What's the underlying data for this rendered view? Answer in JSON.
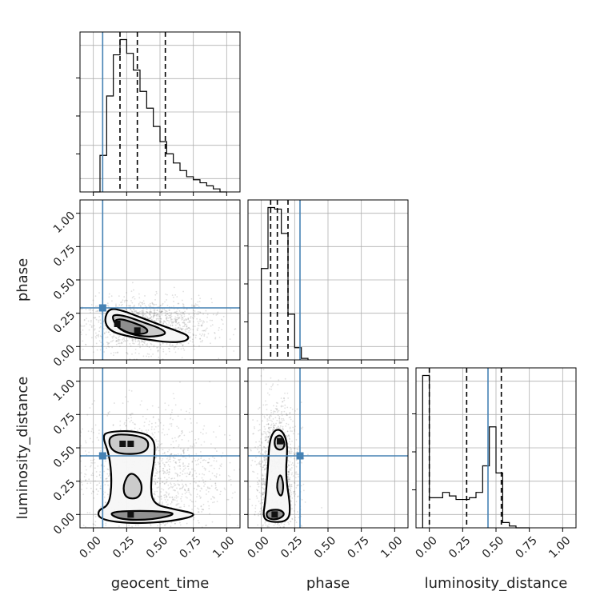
{
  "chart_data": {
    "type": "corner",
    "parameters": [
      "geocent_time",
      "phase",
      "luminosity_distance"
    ],
    "axis_range": [
      -0.1,
      1.1
    ],
    "ticks": [
      0.0,
      0.25,
      0.5,
      0.75,
      1.0
    ],
    "tick_labels": [
      "0.00",
      "0.25",
      "0.50",
      "0.75",
      "1.00"
    ],
    "truths": [
      0.07,
      0.29,
      0.44
    ],
    "colors": {
      "truth": "#4682b4",
      "hist": "#000000",
      "grid": "#b0b0b0",
      "contour": "#000000",
      "scatter": "#555555"
    },
    "grid": true,
    "histograms": [
      {
        "param": "geocent_time",
        "bin_edges": [
          0.0,
          0.05,
          0.1,
          0.15,
          0.2,
          0.25,
          0.3,
          0.35,
          0.4,
          0.45,
          0.5,
          0.55,
          0.6,
          0.65,
          0.7,
          0.75,
          0.8,
          0.85,
          0.9,
          0.95,
          1.0
        ],
        "values": [
          0.0,
          0.24,
          0.63,
          0.9,
          1.0,
          0.91,
          0.8,
          0.66,
          0.55,
          0.43,
          0.33,
          0.25,
          0.19,
          0.14,
          0.1,
          0.08,
          0.06,
          0.04,
          0.02,
          0.0
        ],
        "quantiles": [
          0.2,
          0.33,
          0.54
        ]
      },
      {
        "param": "phase",
        "bin_edges": [
          0.0,
          0.05,
          0.1,
          0.15,
          0.2,
          0.25,
          0.3,
          0.35
        ],
        "values": [
          0.6,
          1.0,
          0.99,
          0.83,
          0.3,
          0.08,
          0.01
        ],
        "quantiles": [
          0.07,
          0.12,
          0.2
        ]
      },
      {
        "param": "luminosity_distance",
        "bin_edges": [
          -0.05,
          0.0,
          0.05,
          0.1,
          0.15,
          0.2,
          0.25,
          0.3,
          0.35,
          0.4,
          0.45,
          0.5,
          0.55,
          0.6,
          0.65,
          0.7,
          0.75
        ],
        "values": [
          0.86,
          0.17,
          0.17,
          0.2,
          0.18,
          0.16,
          0.16,
          0.17,
          0.2,
          0.35,
          0.57,
          0.31,
          0.03,
          0.01,
          0.0,
          0.0
        ],
        "quantiles": [
          0.0,
          0.28,
          0.54
        ]
      }
    ],
    "joint_densities": [
      {
        "x_param": "geocent_time",
        "y_param": "phase",
        "peaks": [
          [
            0.18,
            0.17
          ],
          [
            0.33,
            0.12
          ]
        ],
        "contours": [
          [
            [
              0.08,
              0.2
            ],
            [
              0.12,
              0.29
            ],
            [
              0.22,
              0.27
            ],
            [
              0.35,
              0.22
            ],
            [
              0.48,
              0.17
            ],
            [
              0.62,
              0.12
            ],
            [
              0.72,
              0.08
            ],
            [
              0.7,
              0.04
            ],
            [
              0.58,
              0.03
            ],
            [
              0.42,
              0.05
            ],
            [
              0.24,
              0.08
            ],
            [
              0.12,
              0.12
            ]
          ],
          [
            [
              0.14,
              0.22
            ],
            [
              0.16,
              0.24
            ],
            [
              0.24,
              0.23
            ],
            [
              0.38,
              0.18
            ],
            [
              0.52,
              0.13
            ],
            [
              0.55,
              0.09
            ],
            [
              0.42,
              0.07
            ],
            [
              0.28,
              0.09
            ],
            [
              0.18,
              0.14
            ]
          ],
          [
            [
              0.15,
              0.19
            ],
            [
              0.2,
              0.21
            ],
            [
              0.3,
              0.18
            ],
            [
              0.4,
              0.14
            ],
            [
              0.41,
              0.1
            ],
            [
              0.3,
              0.09
            ],
            [
              0.2,
              0.13
            ]
          ]
        ]
      },
      {
        "x_param": "geocent_time",
        "y_param": "luminosity_distance",
        "peaks": [
          [
            0.22,
            0.53
          ],
          [
            0.28,
            0.53
          ],
          [
            0.28,
            0.0
          ]
        ],
        "contours": [
          [
            [
              0.07,
              0.58
            ],
            [
              0.1,
              0.62
            ],
            [
              0.3,
              0.63
            ],
            [
              0.46,
              0.58
            ],
            [
              0.46,
              0.42
            ],
            [
              0.43,
              0.25
            ],
            [
              0.44,
              0.08
            ],
            [
              0.6,
              0.04
            ],
            [
              0.8,
              0.0
            ],
            [
              0.6,
              -0.05
            ],
            [
              0.3,
              -0.07
            ],
            [
              0.05,
              -0.04
            ],
            [
              0.03,
              0.03
            ],
            [
              0.12,
              0.07
            ],
            [
              0.14,
              0.25
            ],
            [
              0.12,
              0.45
            ]
          ],
          [
            [
              0.12,
              0.6
            ],
            [
              0.3,
              0.6
            ],
            [
              0.42,
              0.56
            ],
            [
              0.4,
              0.46
            ],
            [
              0.2,
              0.45
            ],
            [
              0.12,
              0.5
            ]
          ],
          [
            [
              0.1,
              0.02
            ],
            [
              0.4,
              0.03
            ],
            [
              0.65,
              0.01
            ],
            [
              0.45,
              -0.04
            ],
            [
              0.2,
              -0.04
            ]
          ],
          [
            [
              0.22,
              0.22
            ],
            [
              0.28,
              0.33
            ],
            [
              0.37,
              0.24
            ],
            [
              0.35,
              0.12
            ],
            [
              0.24,
              0.12
            ]
          ]
        ]
      },
      {
        "x_param": "phase",
        "y_param": "luminosity_distance",
        "peaks": [
          [
            0.14,
            0.55
          ],
          [
            0.1,
            0.0
          ]
        ],
        "contours": [
          [
            [
              0.06,
              0.55
            ],
            [
              0.1,
              0.64
            ],
            [
              0.16,
              0.63
            ],
            [
              0.2,
              0.52
            ],
            [
              0.18,
              0.3
            ],
            [
              0.22,
              0.05
            ],
            [
              0.2,
              -0.05
            ],
            [
              0.08,
              -0.06
            ],
            [
              0.01,
              -0.03
            ],
            [
              0.03,
              0.1
            ],
            [
              0.05,
              0.35
            ]
          ],
          [
            [
              0.1,
              0.58
            ],
            [
              0.15,
              0.6
            ],
            [
              0.18,
              0.52
            ],
            [
              0.15,
              0.48
            ],
            [
              0.1,
              0.5
            ]
          ],
          [
            [
              0.04,
              0.03
            ],
            [
              0.14,
              0.04
            ],
            [
              0.18,
              0.0
            ],
            [
              0.12,
              -0.04
            ],
            [
              0.04,
              -0.03
            ]
          ],
          [
            [
              0.11,
              0.2
            ],
            [
              0.14,
              0.32
            ],
            [
              0.17,
              0.22
            ],
            [
              0.15,
              0.12
            ]
          ]
        ]
      }
    ]
  }
}
